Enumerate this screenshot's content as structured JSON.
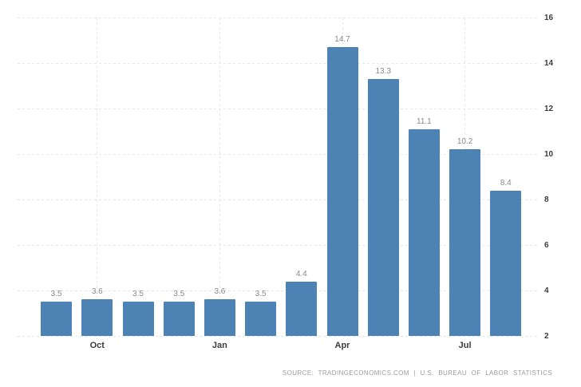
{
  "chart_data": {
    "type": "bar",
    "title": "",
    "values": [
      3.5,
      3.6,
      3.5,
      3.5,
      3.6,
      3.5,
      4.4,
      14.7,
      13.3,
      11.1,
      10.2,
      8.4
    ],
    "value_labels": [
      "3.5",
      "3.6",
      "3.5",
      "3.5",
      "3.6",
      "3.5",
      "4.4",
      "14.7",
      "13.3",
      "11.1",
      "10.2",
      "8.4"
    ],
    "x_tick_labels": [
      "Oct",
      "Jan",
      "Apr",
      "Jul"
    ],
    "x_tick_bar_indices": [
      1,
      4,
      7,
      10
    ],
    "y_ticks": [
      2,
      4,
      6,
      8,
      10,
      12,
      14,
      16
    ],
    "ylim": [
      2,
      16
    ],
    "y_axis_side": "right",
    "grid": "dashed light-gray horizontal lines at each y tick; dashed vertical lines at month ticks",
    "legend": "none",
    "source": "SOURCE: TRADINGECONOMICS.COM | U.S. BUREAU OF LABOR STATISTICS"
  },
  "colors": {
    "bar_fill": "#4d83b4",
    "gridline": "#e6e6e6",
    "axis_label": "#3c3c3c",
    "value_label": "#8a8a8a",
    "source_text": "#9b9b9b",
    "background": "#ffffff"
  }
}
